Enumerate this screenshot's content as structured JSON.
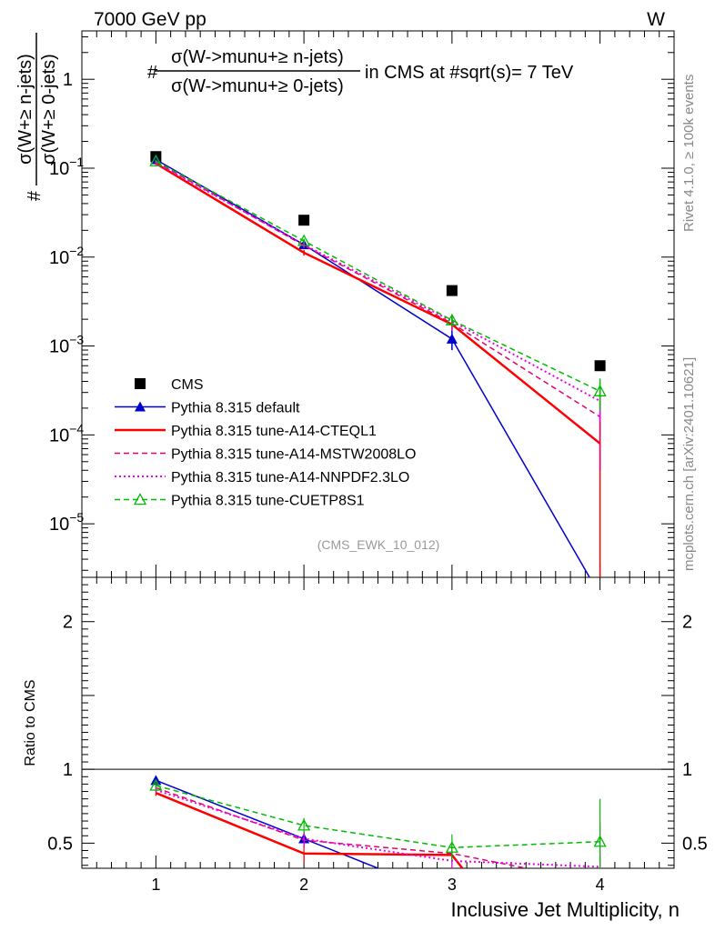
{
  "header": {
    "energy": "7000 GeV pp",
    "process": "W"
  },
  "side": {
    "rivet": "Rivet 4.1.0, ≥ 100k events",
    "mcplots": "mcplots.cern.ch [arXiv:2401.10621]"
  },
  "main_title": {
    "prefix": "#",
    "num": "σ(W->munu+≥ n-jets)",
    "den": "σ(W->munu+≥ 0-jets)",
    "suffix": "in CMS at #sqrt(s)= 7 TeV"
  },
  "ylabel": {
    "prefix": "#",
    "num": "σ(W+≥ n-jets)",
    "den": "σ(W+≥ 0-jets)"
  },
  "ratio_ylabel": "Ratio to CMS",
  "xlabel": "Inclusive Jet Multiplicity, n",
  "analysis_tag": "(CMS_EWK_10_012)",
  "chart_data": [
    {
      "type": "line",
      "yscale": "log",
      "xlim": [
        0.5,
        4.5
      ],
      "ylim": [
        2.5e-06,
        3.5
      ],
      "x_ticks": [
        "1",
        "2",
        "3",
        "4"
      ],
      "y_ticks": [
        {
          "v": 1,
          "base": "1",
          "exp": ""
        },
        {
          "v": 0.1,
          "base": "10",
          "exp": "−1"
        },
        {
          "v": 0.01,
          "base": "10",
          "exp": "−2"
        },
        {
          "v": 0.001,
          "base": "10",
          "exp": "−3"
        },
        {
          "v": 0.0001,
          "base": "10",
          "exp": "−4"
        },
        {
          "v": 1e-05,
          "base": "10",
          "exp": "−5"
        }
      ],
      "series": [
        {
          "name": "CMS",
          "color": "#000000",
          "dash": "",
          "marker": "square",
          "x": [
            1,
            2,
            3,
            4
          ],
          "y": [
            0.135,
            0.026,
            0.0042,
            0.0006
          ],
          "err": [
            0,
            0,
            0,
            0
          ]
        },
        {
          "name": "Pythia 8.315 default",
          "color": "#0000cc",
          "dash": "",
          "marker": "triangle",
          "x": [
            1,
            2,
            3,
            4
          ],
          "y": [
            0.125,
            0.0138,
            0.0012,
            0.0
          ],
          "err": [
            0.004,
            0.0008,
            0.0003,
            0
          ]
        },
        {
          "name": "Pythia 8.315 tune-A14-CTEQL1",
          "color": "#ff0000",
          "dash": "",
          "marker": "none",
          "x": [
            1,
            2,
            3,
            4
          ],
          "y": [
            0.113,
            0.0112,
            0.00175,
            8e-05
          ],
          "err": [
            0.004,
            0.0008,
            0.0002,
            8e-05
          ]
        },
        {
          "name": "Pythia 8.315 tune-A14-MSTW2008LO",
          "color": "#e6006e",
          "dash": "6,4",
          "marker": "none",
          "x": [
            1,
            2,
            3,
            4
          ],
          "y": [
            0.118,
            0.0135,
            0.0018,
            0.00016
          ],
          "err": [
            0.004,
            0.0008,
            0.0003,
            0.00012
          ]
        },
        {
          "name": "Pythia 8.315 tune-A14-NNPDF2.3LO",
          "color": "#ee00ee",
          "dash": "2,3",
          "marker": "none",
          "x": [
            1,
            2,
            3,
            4
          ],
          "y": [
            0.115,
            0.0138,
            0.0019,
            0.00024
          ],
          "err": [
            0.004,
            0.0008,
            0.0003,
            0.0001
          ]
        },
        {
          "name": "Pythia 8.315 tune-CUETP8S1",
          "color": "#00bb00",
          "dash": "6,4",
          "marker": "triangle-open",
          "x": [
            1,
            2,
            3,
            4
          ],
          "y": [
            0.12,
            0.0152,
            0.00195,
            0.00031
          ],
          "err": [
            0.004,
            0.0009,
            0.0003,
            0.00012
          ]
        }
      ]
    },
    {
      "type": "line",
      "yscale": "linear",
      "xlim": [
        0.5,
        4.5
      ],
      "ylim": [
        0.33,
        2.3
      ],
      "y_ticks": [
        "0.5",
        "1",
        "2"
      ],
      "reference": 1,
      "series": [
        {
          "name": "Pythia 8.315 default",
          "x": [
            1,
            2,
            2.5
          ],
          "y": [
            0.925,
            0.53,
            0.33
          ],
          "err": [
            0.02,
            0.05,
            0
          ]
        },
        {
          "name": "Pythia 8.315 tune-A14-CTEQL1",
          "x": [
            1,
            2,
            3,
            3.07
          ],
          "y": [
            0.84,
            0.43,
            0.42,
            0.33
          ],
          "err": [
            0.02,
            0.06,
            0.05,
            0
          ]
        },
        {
          "name": "Pythia 8.315 tune-A14-MSTW2008LO",
          "x": [
            1,
            2,
            3,
            3.5
          ],
          "y": [
            0.875,
            0.52,
            0.43,
            0.33
          ],
          "err": [
            0.02,
            0.05,
            0.06,
            0
          ]
        },
        {
          "name": "Pythia 8.315 tune-A14-NNPDF2.3LO",
          "x": [
            1,
            2,
            3,
            4
          ],
          "y": [
            0.86,
            0.53,
            0.38,
            0.34
          ],
          "err": [
            0.02,
            0.05,
            0.06,
            0.3
          ]
        },
        {
          "name": "Pythia 8.315 tune-CUETP8S1",
          "x": [
            1,
            2,
            3,
            4
          ],
          "y": [
            0.89,
            0.62,
            0.47,
            0.51
          ],
          "err": [
            0.02,
            0.05,
            0.09,
            0.29
          ]
        }
      ]
    }
  ]
}
